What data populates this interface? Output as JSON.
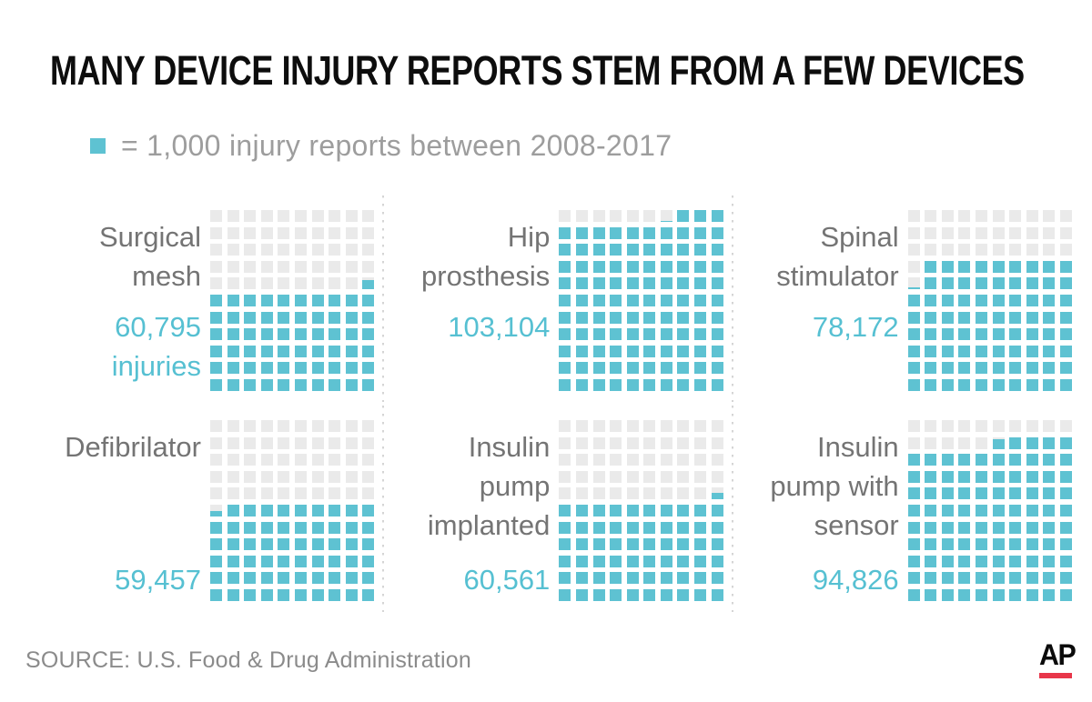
{
  "source": "SOURCE: U.S. Food & Drug Administration",
  "logo": {
    "text": "AP"
  },
  "colors": {
    "teal": "#5ec2d2",
    "teal_text": "#56c0d2",
    "empty_square": "#eaeaea",
    "label_gray": "#747474",
    "legend_gray": "#9d9d9d",
    "source_gray": "#8b8b8b",
    "title_black": "#0d0d0d",
    "divider_gray": "#d5d5d5",
    "ap_red": "#e8364a"
  },
  "chart_data": {
    "type": "waffle",
    "title": "MANY DEVICE INJURY REPORTS STEM FROM A FEW DEVICES",
    "legend_text": "= 1,000 injury reports between 2008-2017",
    "unit_value": 1000,
    "unit_description": "1 square = 1,000 injury reports",
    "period": "2008-2017",
    "grid": {
      "columns": 10,
      "rows": 11
    },
    "legend_position": "top-left",
    "charts": [
      {
        "name": "Surgical mesh",
        "label_lines": [
          "Surgical",
          "mesh"
        ],
        "value": 60795,
        "value_lines": [
          "60,795",
          "injuries"
        ],
        "column_units": [
          6,
          6,
          6,
          6,
          6,
          6,
          6,
          6,
          6,
          6.795
        ]
      },
      {
        "name": "Hip prosthesis",
        "label_lines": [
          "Hip",
          "prosthesis"
        ],
        "value": 103104,
        "value_lines": [
          "103,104"
        ],
        "column_units": [
          10,
          10,
          10,
          10,
          10,
          10,
          10.104,
          11,
          11,
          11
        ]
      },
      {
        "name": "Spinal stimulator",
        "label_lines": [
          "Spinal",
          "stimulator"
        ],
        "value": 78172,
        "value_lines": [
          "78,172"
        ],
        "column_units": [
          6.172,
          8,
          8,
          8,
          8,
          8,
          8,
          8,
          8,
          8
        ]
      },
      {
        "name": "Defibrilator",
        "label_lines": [
          "Defibrilator"
        ],
        "value": 59457,
        "value_lines": [
          "59,457"
        ],
        "column_units": [
          5.457,
          6,
          6,
          6,
          6,
          6,
          6,
          6,
          6,
          6
        ]
      },
      {
        "name": "Insulin pump implanted",
        "label_lines": [
          "Insulin",
          "pump",
          "implanted"
        ],
        "value": 60561,
        "value_lines": [
          "60,561"
        ],
        "column_units": [
          6,
          6,
          6,
          6,
          6,
          6,
          6,
          6,
          6,
          6.561
        ]
      },
      {
        "name": "Insulin pump with sensor",
        "label_lines": [
          "Insulin",
          "pump with",
          "sensor"
        ],
        "value": 94826,
        "value_lines": [
          "94,826"
        ],
        "column_units": [
          9,
          9,
          9,
          9,
          9,
          9.826,
          10,
          10,
          10,
          10
        ]
      }
    ]
  }
}
